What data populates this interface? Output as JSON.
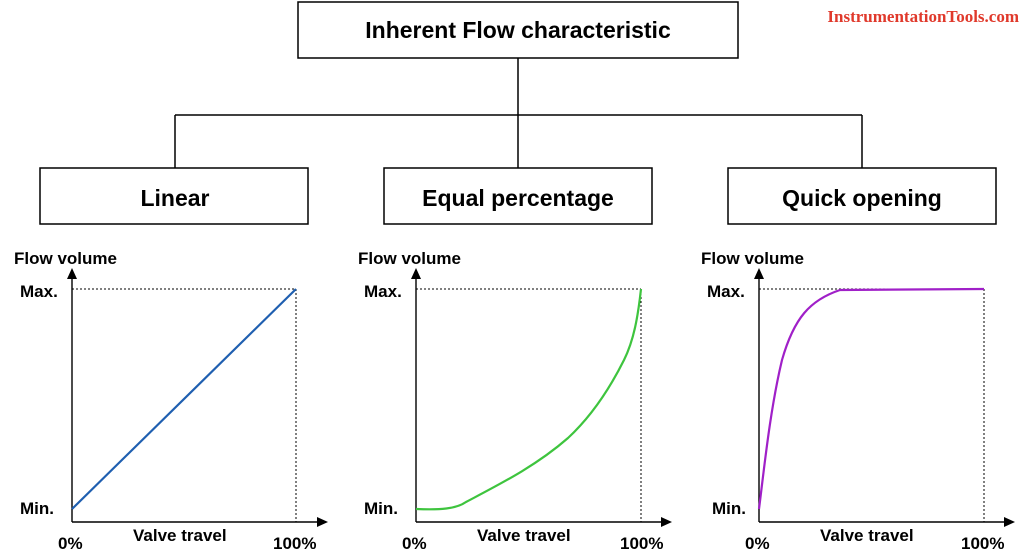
{
  "title": "Inherent Flow characteristic",
  "watermark": "InstrumentationTools.com",
  "colors": {
    "watermark": "#e0392b",
    "linear": "#1f5fb0",
    "equal_percentage": "#3ec43e",
    "quick_opening": "#a020c8"
  },
  "charts": [
    {
      "label": "Linear",
      "y_axis_label": "Flow volume",
      "x_axis_label": "Valve travel",
      "y_max_label": "Max.",
      "y_min_label": "Min.",
      "x_start_label": "0%",
      "x_end_label": "100%"
    },
    {
      "label": "Equal percentage",
      "y_axis_label": "Flow volume",
      "x_axis_label": "Valve travel",
      "y_max_label": "Max.",
      "y_min_label": "Min.",
      "x_start_label": "0%",
      "x_end_label": "100%"
    },
    {
      "label": "Quick opening",
      "y_axis_label": "Flow volume",
      "x_axis_label": "Valve travel",
      "y_max_label": "Max.",
      "y_min_label": "Min.",
      "x_start_label": "0%",
      "x_end_label": "100%"
    }
  ]
}
